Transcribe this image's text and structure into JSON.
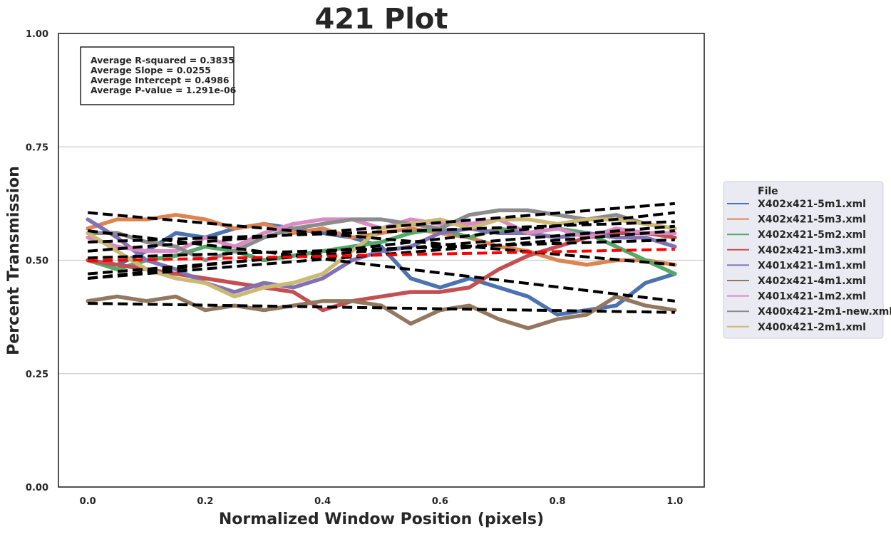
{
  "chart_data": {
    "type": "line",
    "title": "421 Plot",
    "xlabel": "Normalized Window Position (pixels)",
    "ylabel": "Percent Transmission",
    "xlim": [
      -0.05,
      1.05
    ],
    "ylim": [
      0.0,
      1.0
    ],
    "xticks": [
      0.0,
      0.2,
      0.4,
      0.6,
      0.8,
      1.0
    ],
    "xtick_labels": [
      "0.0",
      "0.2",
      "0.4",
      "0.6",
      "0.8",
      "1.0"
    ],
    "yticks": [
      0.0,
      0.25,
      0.5,
      0.75,
      1.0
    ],
    "ytick_labels": [
      "0.00",
      "0.25",
      "0.50",
      "0.75",
      "1.00"
    ],
    "grid": "horizontal",
    "legend_placement": "outside-right",
    "legend_title": "File",
    "stats": [
      "Average R-squared = 0.3835",
      "Average Slope = 0.0255",
      "Average Intercept = 0.4986",
      "Average P-value = 1.291e-06"
    ],
    "x": [
      0.0,
      0.05,
      0.1,
      0.15,
      0.2,
      0.25,
      0.3,
      0.35,
      0.4,
      0.45,
      0.5,
      0.55,
      0.6,
      0.65,
      0.7,
      0.75,
      0.8,
      0.85,
      0.9,
      0.95,
      1.0
    ],
    "series": [
      {
        "name": "X402x421-5m1.xml",
        "color": "#4c72b0",
        "values": [
          0.5,
          0.49,
          0.52,
          0.56,
          0.55,
          0.57,
          0.58,
          0.57,
          0.56,
          0.55,
          0.53,
          0.46,
          0.44,
          0.46,
          0.44,
          0.42,
          0.38,
          0.39,
          0.4,
          0.45,
          0.47
        ],
        "trend": [
          0.565,
          0.41
        ]
      },
      {
        "name": "X402x421-5m3.xml",
        "color": "#dd8452",
        "values": [
          0.57,
          0.59,
          0.59,
          0.6,
          0.59,
          0.57,
          0.58,
          0.56,
          0.57,
          0.55,
          0.56,
          0.57,
          0.56,
          0.55,
          0.53,
          0.52,
          0.5,
          0.49,
          0.5,
          0.5,
          0.49
        ],
        "trend": [
          0.605,
          0.49
        ]
      },
      {
        "name": "X402x421-5m2.xml",
        "color": "#55a868",
        "values": [
          0.5,
          0.48,
          0.5,
          0.51,
          0.53,
          0.52,
          0.5,
          0.51,
          0.52,
          0.53,
          0.54,
          0.56,
          0.57,
          0.55,
          0.57,
          0.56,
          0.57,
          0.56,
          0.53,
          0.5,
          0.47
        ],
        "trend": [
          0.505,
          0.545
        ]
      },
      {
        "name": "X402x421-1m3.xml",
        "color": "#c44e52",
        "values": [
          0.5,
          0.49,
          0.48,
          0.47,
          0.46,
          0.45,
          0.44,
          0.43,
          0.39,
          0.41,
          0.42,
          0.43,
          0.43,
          0.44,
          0.48,
          0.51,
          0.53,
          0.55,
          0.56,
          0.56,
          0.55
        ],
        "trend": [
          0.46,
          0.565
        ]
      },
      {
        "name": "X401x421-1m1.xml",
        "color": "#8172b3",
        "values": [
          0.59,
          0.55,
          0.5,
          0.48,
          0.45,
          0.43,
          0.45,
          0.44,
          0.46,
          0.5,
          0.52,
          0.53,
          0.56,
          0.57,
          0.56,
          0.56,
          0.55,
          0.56,
          0.55,
          0.55,
          0.53
        ],
        "trend": [
          0.47,
          0.575
        ]
      },
      {
        "name": "X402x421-4m1.xml",
        "color": "#937860",
        "values": [
          0.41,
          0.42,
          0.41,
          0.42,
          0.39,
          0.4,
          0.39,
          0.4,
          0.41,
          0.41,
          0.4,
          0.36,
          0.39,
          0.4,
          0.37,
          0.35,
          0.37,
          0.38,
          0.42,
          0.4,
          0.39
        ],
        "trend": [
          0.405,
          0.385
        ]
      },
      {
        "name": "X401x421-1m2.xml",
        "color": "#da8bc3",
        "values": [
          0.55,
          0.53,
          0.52,
          0.52,
          0.55,
          0.53,
          0.56,
          0.58,
          0.59,
          0.59,
          0.57,
          0.59,
          0.58,
          0.58,
          0.59,
          0.56,
          0.57,
          0.55,
          0.57,
          0.56,
          0.56
        ],
        "trend": [
          0.54,
          0.585
        ]
      },
      {
        "name": "X400x421-2m1-new.xml",
        "color": "#8c8c8c",
        "values": [
          0.56,
          0.56,
          0.54,
          0.53,
          0.5,
          0.52,
          0.55,
          0.57,
          0.58,
          0.59,
          0.59,
          0.58,
          0.57,
          0.6,
          0.61,
          0.61,
          0.6,
          0.59,
          0.6,
          0.58,
          0.57
        ],
        "trend": [
          0.52,
          0.625
        ]
      },
      {
        "name": "X400x421-2m1.xml",
        "color": "#ccb974",
        "values": [
          0.56,
          0.52,
          0.48,
          0.46,
          0.45,
          0.42,
          0.44,
          0.45,
          0.47,
          0.52,
          0.57,
          0.58,
          0.59,
          0.57,
          0.59,
          0.59,
          0.58,
          0.59,
          0.59,
          0.58,
          0.57
        ],
        "trend": [
          0.46,
          0.605
        ]
      }
    ],
    "average_trend": {
      "color": "#ff0000",
      "trend": [
        0.4986,
        0.5241
      ]
    },
    "colors": {
      "axis": "#262626",
      "grid": "#cccccc",
      "legend_bg": "#eaeaf2",
      "fit": "#000000"
    }
  }
}
